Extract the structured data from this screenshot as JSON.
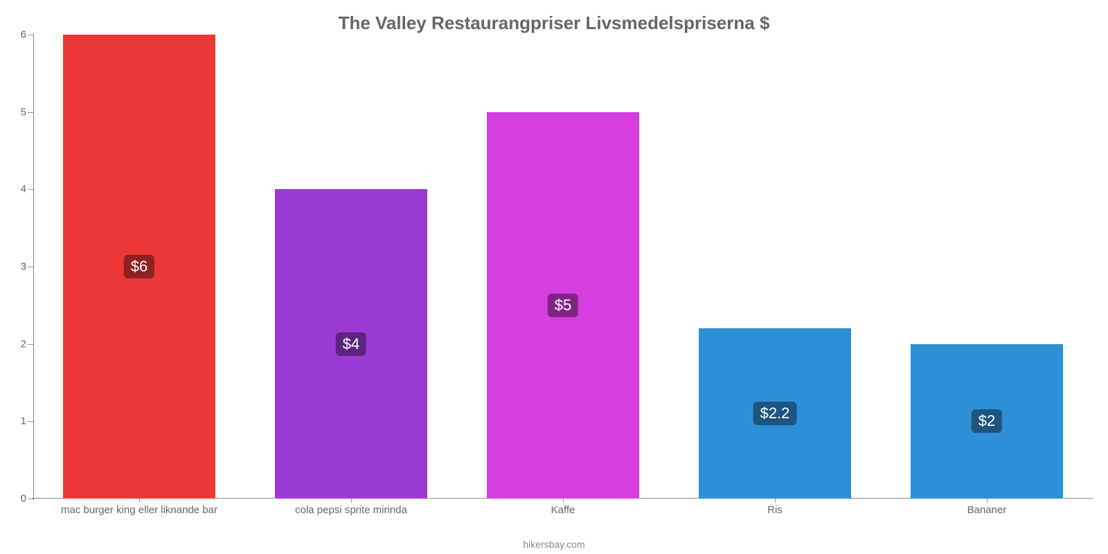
{
  "chart": {
    "type": "bar",
    "title": "The Valley Restaurangpriser Livsmedelspriserna $",
    "title_color": "#666666",
    "title_fontsize": 26,
    "background_color": "#ffffff",
    "axis_color": "#888888",
    "tick_color": "#999999",
    "label_color": "#666666",
    "label_fontsize": 15,
    "value_fontsize": 22,
    "y": {
      "min": 0,
      "max": 6,
      "ticks": [
        0,
        1,
        2,
        3,
        4,
        5,
        6
      ]
    },
    "bar_width_ratio": 0.72,
    "categories": [
      "mac burger king eller liknande bar",
      "cola pepsi sprite mirinda",
      "Kaffe",
      "Ris",
      "Bananer"
    ],
    "values": [
      6,
      4,
      5,
      2.2,
      2
    ],
    "value_labels": [
      "$6",
      "$4",
      "$5",
      "$2.2",
      "$2"
    ],
    "bar_colors": [
      "#ed3737",
      "#9b3bd6",
      "#d53ee0",
      "#2e8fd6",
      "#2e8fd6"
    ],
    "badge_colors": [
      "#8f2121",
      "#5d2480",
      "#802586",
      "#1c5680",
      "#1c5680"
    ],
    "footer": "hikersbay.com",
    "footer_color": "#888888"
  }
}
